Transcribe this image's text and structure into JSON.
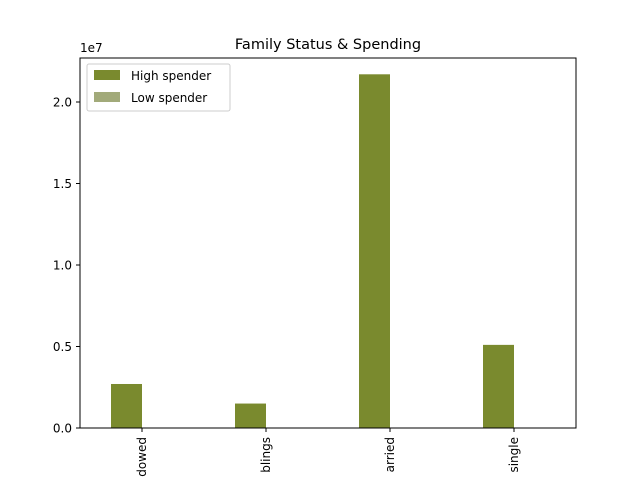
{
  "chart_data": {
    "type": "bar",
    "title": "Family Status & Spending",
    "xlabel": "",
    "ylabel": "",
    "y_offset_label": "1e7",
    "categories": [
      "dowed",
      "blings",
      "arried",
      "single"
    ],
    "series": [
      {
        "name": "High spender",
        "values": [
          2700000.0,
          1500000.0,
          21700000.0,
          5100000.0
        ],
        "color": "#7a8a2e"
      },
      {
        "name": "Low spender",
        "values": [
          0,
          0,
          0,
          0
        ],
        "color": "#a2aa7a"
      }
    ],
    "ylim": [
      0,
      22700000.0
    ],
    "yticks": [
      0,
      5000000.0,
      10000000.0,
      15000000.0,
      20000000.0
    ],
    "ytick_labels": [
      "0.0",
      "0.5",
      "1.0",
      "1.5",
      "2.0"
    ],
    "legend_position": "top-left",
    "grid": false
  }
}
